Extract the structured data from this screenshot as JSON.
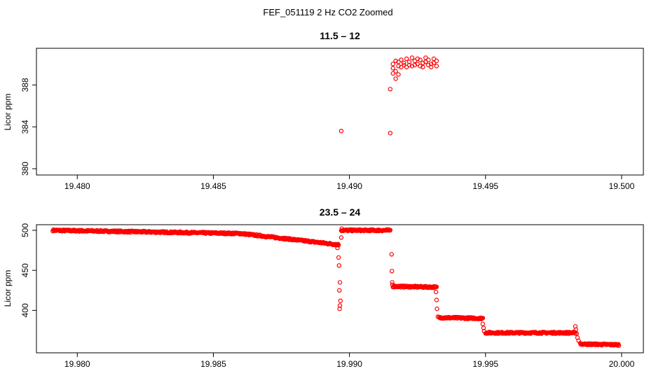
{
  "figure_title": "FEF_051119  2 Hz CO2 Zoomed",
  "colors": {
    "points": "#ff0000",
    "axes": "#000000",
    "background": "#ffffff"
  },
  "chart_data": [
    {
      "type": "scatter",
      "title": "11.5 – 12",
      "xlabel": "",
      "ylabel": "Licor ppm",
      "xlim": [
        19.4785,
        19.5008
      ],
      "ylim": [
        379.4,
        391.5
      ],
      "xticks": [
        19.48,
        19.485,
        19.49,
        19.495,
        19.5
      ],
      "xtick_labels": [
        "19.480",
        "19.485",
        "19.490",
        "19.495",
        "19.500"
      ],
      "yticks": [
        380,
        384,
        388
      ],
      "ytick_labels": [
        "380",
        "384",
        "388"
      ],
      "grid": false,
      "series": [
        {
          "points": [
            [
              19.4897,
              383.6
            ],
            [
              19.4915,
              383.4
            ],
            [
              19.4915,
              387.6
            ],
            [
              19.4916,
              389.1
            ],
            [
              19.4916,
              389.6
            ],
            [
              19.4916,
              390.0
            ],
            [
              19.4917,
              388.6
            ],
            [
              19.4917,
              389.3
            ],
            [
              19.4917,
              390.3
            ],
            [
              19.4918,
              389.0
            ],
            [
              19.4918,
              389.8
            ],
            [
              19.4918,
              390.2
            ],
            [
              19.4919,
              390.4
            ],
            [
              19.4919,
              389.7
            ],
            [
              19.492,
              390.1
            ],
            [
              19.492,
              389.9
            ],
            [
              19.4921,
              390.5
            ],
            [
              19.4921,
              389.7
            ],
            [
              19.4922,
              390.2
            ],
            [
              19.4922,
              389.9
            ],
            [
              19.4923,
              390.6
            ],
            [
              19.4923,
              389.8
            ],
            [
              19.4924,
              390.3
            ],
            [
              19.4924,
              389.9
            ],
            [
              19.4925,
              390.5
            ],
            [
              19.4925,
              390.0
            ],
            [
              19.4926,
              389.8
            ],
            [
              19.4926,
              390.4
            ],
            [
              19.4927,
              390.1
            ],
            [
              19.4927,
              389.7
            ],
            [
              19.4928,
              390.6
            ],
            [
              19.4928,
              390.2
            ],
            [
              19.4929,
              389.9
            ],
            [
              19.4929,
              390.4
            ],
            [
              19.493,
              390.0
            ],
            [
              19.493,
              389.7
            ],
            [
              19.4931,
              390.5
            ],
            [
              19.4931,
              390.1
            ],
            [
              19.4932,
              389.8
            ],
            [
              19.4932,
              390.3
            ]
          ]
        }
      ]
    },
    {
      "type": "scatter",
      "title": "23.5 – 24",
      "xlabel": "",
      "ylabel": "Licor ppm",
      "xlim": [
        19.9785,
        20.0008
      ],
      "ylim": [
        347,
        507
      ],
      "xticks": [
        19.98,
        19.985,
        19.99,
        19.995,
        20.0
      ],
      "xtick_labels": [
        "19.980",
        "19.985",
        "19.990",
        "19.995",
        "20.000"
      ],
      "yticks": [
        400,
        450,
        500
      ],
      "ytick_labels": [
        "400",
        "450",
        "500"
      ],
      "grid": false,
      "series": [
        {
          "segments": [
            {
              "x0": 19.9791,
              "x1": 19.986,
              "y0": 500,
              "y1": 496,
              "spread": 2,
              "step": 2e-05
            },
            {
              "x0": 19.986,
              "x1": 19.9896,
              "y0": 496,
              "y1": 482,
              "spread": 2,
              "step": 2e-05
            },
            {
              "x0": 19.9897,
              "x1": 19.9915,
              "y0": 500,
              "y1": 500,
              "spread": 2,
              "step": 2e-05
            },
            {
              "x0": 19.9916,
              "x1": 19.9932,
              "y0": 430,
              "y1": 429,
              "spread": 2,
              "step": 2e-05
            },
            {
              "x0": 19.9933,
              "x1": 19.9949,
              "y0": 391,
              "y1": 390,
              "spread": 2,
              "step": 2e-05
            },
            {
              "x0": 19.995,
              "x1": 19.9983,
              "y0": 372,
              "y1": 372,
              "spread": 2,
              "step": 2e-05
            },
            {
              "x0": 19.9985,
              "x1": 19.9999,
              "y0": 358,
              "y1": 357,
              "spread": 2,
              "step": 2e-05
            }
          ],
          "points": [
            [
              19.98956,
              478
            ],
            [
              19.9896,
              466
            ],
            [
              19.98962,
              456
            ],
            [
              19.98965,
              435
            ],
            [
              19.98963,
              425
            ],
            [
              19.98967,
              412
            ],
            [
              19.98965,
              406
            ],
            [
              19.98964,
              402
            ],
            [
              19.9897,
              491
            ],
            [
              19.98972,
              502
            ],
            [
              19.99155,
              470
            ],
            [
              19.99156,
              449
            ],
            [
              19.99157,
              435
            ],
            [
              19.99158,
              432
            ],
            [
              19.99318,
              423
            ],
            [
              19.9932,
              413
            ],
            [
              19.99322,
              402
            ],
            [
              19.99325,
              392
            ],
            [
              19.9949,
              383
            ],
            [
              19.99493,
              378
            ],
            [
              19.99495,
              374
            ],
            [
              19.9983,
              380
            ],
            [
              19.99832,
              376
            ],
            [
              19.99835,
              371
            ],
            [
              19.99838,
              366
            ],
            [
              19.99842,
              362
            ],
            [
              19.99848,
              359
            ]
          ]
        }
      ]
    }
  ]
}
